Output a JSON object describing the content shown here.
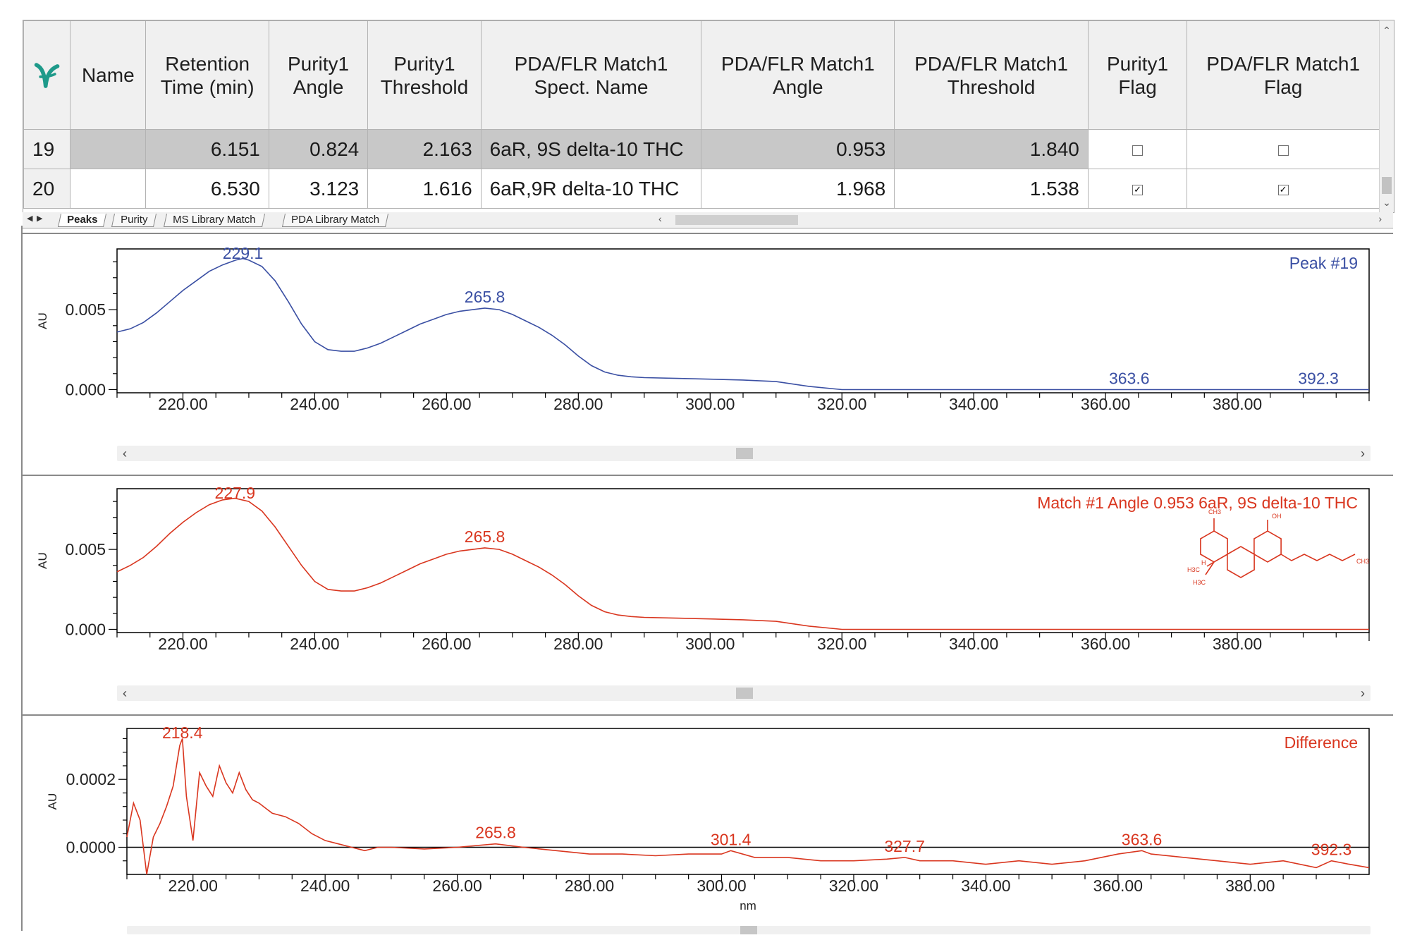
{
  "grid": {
    "columns": [
      "",
      "Name",
      "Retention Time (min)",
      "Purity1 Angle",
      "Purity1 Threshold",
      "PDA/FLR Match1 Spect. Name",
      "PDA/FLR Match1 Angle",
      "PDA/FLR Match1 Threshold",
      "Purity1 Flag",
      "PDA/FLR Match1 Flag"
    ],
    "rows": [
      {
        "num": "19",
        "name": "",
        "rt": "6.151",
        "p_angle": "0.824",
        "p_threshold": "2.163",
        "spect_name": "6aR, 9S delta-10 THC",
        "m_angle": "0.953",
        "m_threshold": "1.840",
        "purity_flag": false,
        "match_flag": false,
        "selected": true
      },
      {
        "num": "20",
        "name": "",
        "rt": "6.530",
        "p_angle": "3.123",
        "p_threshold": "1.616",
        "spect_name": "6aR,9R delta-10 THC",
        "m_angle": "1.968",
        "m_threshold": "1.538",
        "purity_flag": true,
        "match_flag": true,
        "selected": false
      }
    ]
  },
  "tabs": [
    {
      "label": "Peaks",
      "active": true
    },
    {
      "label": "Purity",
      "active": false
    },
    {
      "label": "MS Library Match",
      "active": false
    },
    {
      "label": "PDA Library Match",
      "active": false
    }
  ],
  "icons": {
    "app_logo": "empower-logo-icon",
    "nav_first": "nav-first-icon",
    "nav_prev": "nav-prev-icon",
    "nav_next": "nav-next-icon"
  },
  "colors": {
    "peak": "#3a4fa3",
    "match": "#d9361f",
    "difference": "#d9361f",
    "axis": "#000000"
  },
  "charts": [
    {
      "id": "peak",
      "label": "Peak #19",
      "ylabel": "AU",
      "xlabel": "",
      "xlim": [
        210,
        400
      ],
      "ylim": [
        -0.0002,
        0.0088
      ],
      "yticks": [
        "0.000",
        "0.005"
      ],
      "ytick_values": [
        0.0,
        0.005
      ],
      "xticks": [
        "220.00",
        "240.00",
        "260.00",
        "280.00",
        "300.00",
        "320.00",
        "340.00",
        "360.00",
        "380.00"
      ],
      "xtick_values": [
        220,
        240,
        260,
        280,
        300,
        320,
        340,
        360,
        380
      ],
      "peaks": [
        {
          "x": 229.1,
          "label": "229.1"
        },
        {
          "x": 265.8,
          "label": "265.8"
        },
        {
          "x": 363.6,
          "label": "363.6"
        },
        {
          "x": 392.3,
          "label": "392.3"
        }
      ],
      "scrollbar_position": 0.5
    },
    {
      "id": "match",
      "label": "Match #1 Angle 0.953 6aR, 9S delta-10 THC",
      "ylabel": "AU",
      "xlabel": "",
      "xlim": [
        210,
        400
      ],
      "ylim": [
        -0.0002,
        0.0088
      ],
      "yticks": [
        "0.000",
        "0.005"
      ],
      "ytick_values": [
        0.0,
        0.005
      ],
      "xticks": [
        "220.00",
        "240.00",
        "260.00",
        "280.00",
        "300.00",
        "320.00",
        "340.00",
        "360.00",
        "380.00"
      ],
      "xtick_values": [
        220,
        240,
        260,
        280,
        300,
        320,
        340,
        360,
        380
      ],
      "peaks": [
        {
          "x": 227.9,
          "label": "227.9"
        },
        {
          "x": 265.8,
          "label": "265.8"
        }
      ],
      "structure_labels": {
        "ch3_top": "CH3",
        "oh": "OH",
        "h3c_1": "H3C",
        "h3c_2": "H3C",
        "ch3_end": "CH3",
        "h": "H"
      },
      "scrollbar_position": 0.5
    },
    {
      "id": "difference",
      "label": "Difference",
      "ylabel": "AU",
      "xlabel": "nm",
      "xlim": [
        210,
        398
      ],
      "ylim": [
        -8e-05,
        0.00035
      ],
      "yticks": [
        "0.0000",
        "0.0002"
      ],
      "ytick_values": [
        0.0,
        0.0002
      ],
      "xticks": [
        "220.00",
        "240.00",
        "260.00",
        "280.00",
        "300.00",
        "320.00",
        "340.00",
        "360.00",
        "380.00"
      ],
      "xtick_values": [
        220,
        240,
        260,
        280,
        300,
        320,
        340,
        360,
        380
      ],
      "peaks": [
        {
          "x": 218.4,
          "label": "218.4"
        },
        {
          "x": 265.8,
          "label": "265.8"
        },
        {
          "x": 301.4,
          "label": "301.4"
        },
        {
          "x": 327.7,
          "label": "327.7"
        },
        {
          "x": 363.6,
          "label": "363.6"
        },
        {
          "x": 392.3,
          "label": "392.3"
        }
      ],
      "scrollbar_position": 0.5
    }
  ],
  "chart_data": [
    {
      "type": "line",
      "title": "Peak #19",
      "xlabel": "",
      "ylabel": "AU",
      "xlim": [
        210,
        400
      ],
      "ylim": [
        -0.0002,
        0.0088
      ],
      "series": [
        {
          "name": "Peak #19",
          "x": [
            210,
            212,
            214,
            216,
            218,
            220,
            222,
            224,
            226,
            228,
            229.1,
            230,
            232,
            234,
            236,
            238,
            240,
            242,
            244,
            246,
            248,
            250,
            252,
            254,
            256,
            258,
            260,
            262,
            264,
            265.8,
            268,
            270,
            272,
            274,
            276,
            278,
            280,
            282,
            284,
            286,
            288,
            290,
            295,
            300,
            305,
            310,
            315,
            320,
            330,
            340,
            350,
            360,
            363.6,
            370,
            380,
            392.3,
            400
          ],
          "y": [
            0.0036,
            0.0038,
            0.0042,
            0.0048,
            0.0055,
            0.0062,
            0.0068,
            0.0074,
            0.0078,
            0.0081,
            0.0082,
            0.0081,
            0.0077,
            0.0068,
            0.0055,
            0.0041,
            0.003,
            0.0025,
            0.0024,
            0.0024,
            0.0026,
            0.0029,
            0.0033,
            0.0037,
            0.0041,
            0.0044,
            0.0047,
            0.0049,
            0.005,
            0.0051,
            0.005,
            0.0047,
            0.0043,
            0.0039,
            0.0034,
            0.0028,
            0.0021,
            0.0015,
            0.0011,
            0.0009,
            0.0008,
            0.00075,
            0.0007,
            0.00065,
            0.0006,
            0.0005,
            0.0002,
            0.0,
            0.0,
            0.0,
            0.0,
            0.0,
            0.0,
            0.0,
            0.0,
            0.0,
            0.0
          ]
        }
      ]
    },
    {
      "type": "line",
      "title": "Match #1 Angle 0.953 6aR, 9S delta-10 THC",
      "xlabel": "",
      "ylabel": "AU",
      "xlim": [
        210,
        400
      ],
      "ylim": [
        -0.0002,
        0.0088
      ],
      "series": [
        {
          "name": "Match #1",
          "x": [
            210,
            212,
            214,
            216,
            218,
            220,
            222,
            224,
            226,
            227.9,
            230,
            232,
            234,
            236,
            238,
            240,
            242,
            244,
            246,
            248,
            250,
            252,
            254,
            256,
            258,
            260,
            262,
            264,
            265.8,
            268,
            270,
            272,
            274,
            276,
            278,
            280,
            282,
            284,
            286,
            288,
            290,
            295,
            300,
            305,
            310,
            315,
            320,
            330,
            340,
            350,
            360,
            370,
            380,
            390,
            400
          ],
          "y": [
            0.0036,
            0.004,
            0.0045,
            0.0052,
            0.006,
            0.0067,
            0.0073,
            0.0078,
            0.0081,
            0.0082,
            0.008,
            0.0074,
            0.0064,
            0.0052,
            0.004,
            0.003,
            0.0025,
            0.0024,
            0.0024,
            0.0026,
            0.0029,
            0.0033,
            0.0037,
            0.0041,
            0.0044,
            0.0047,
            0.0049,
            0.005,
            0.0051,
            0.005,
            0.0047,
            0.0043,
            0.0039,
            0.0034,
            0.0028,
            0.0021,
            0.0015,
            0.0011,
            0.0009,
            0.0008,
            0.00075,
            0.0007,
            0.00065,
            0.0006,
            0.0005,
            0.0002,
            0.0,
            0.0,
            0.0,
            0.0,
            0.0,
            0.0,
            0.0,
            0.0,
            0.0
          ]
        }
      ]
    },
    {
      "type": "line",
      "title": "Difference",
      "xlabel": "nm",
      "ylabel": "AU",
      "xlim": [
        210,
        398
      ],
      "ylim": [
        -8e-05,
        0.00035
      ],
      "series": [
        {
          "name": "Difference",
          "x": [
            210,
            211,
            212,
            213,
            214,
            215,
            216,
            217,
            218,
            218.4,
            219,
            220,
            221,
            222,
            223,
            224,
            225,
            226,
            227,
            228,
            229,
            230,
            232,
            234,
            236,
            238,
            240,
            242,
            244,
            246,
            248,
            250,
            255,
            260,
            265.8,
            270,
            275,
            280,
            285,
            290,
            295,
            300,
            301.4,
            305,
            310,
            315,
            320,
            325,
            327.7,
            330,
            335,
            340,
            345,
            350,
            355,
            360,
            363.6,
            365,
            370,
            375,
            380,
            385,
            390,
            392.3,
            395,
            398
          ],
          "y": [
            3e-05,
            0.00013,
            8e-05,
            -8e-05,
            3e-05,
            7e-05,
            0.00012,
            0.00018,
            0.0003,
            0.00032,
            0.00015,
            2e-05,
            0.00022,
            0.00018,
            0.00015,
            0.00024,
            0.00019,
            0.00016,
            0.00022,
            0.00017,
            0.00014,
            0.00013,
            0.0001,
            9e-05,
            7e-05,
            4e-05,
            2e-05,
            1e-05,
            0.0,
            -1e-05,
            0.0,
            0.0,
            -5e-06,
            0.0,
            1e-05,
            0.0,
            -1e-05,
            -2e-05,
            -2e-05,
            -2.5e-05,
            -2e-05,
            -2e-05,
            -1e-05,
            -3e-05,
            -3e-05,
            -4e-05,
            -4e-05,
            -3.5e-05,
            -3e-05,
            -4e-05,
            -4e-05,
            -5e-05,
            -4e-05,
            -5e-05,
            -4e-05,
            -2e-05,
            -1e-05,
            -2e-05,
            -3e-05,
            -4e-05,
            -5e-05,
            -4e-05,
            -6e-05,
            -4e-05,
            -5e-05,
            -6e-05
          ]
        }
      ]
    }
  ]
}
